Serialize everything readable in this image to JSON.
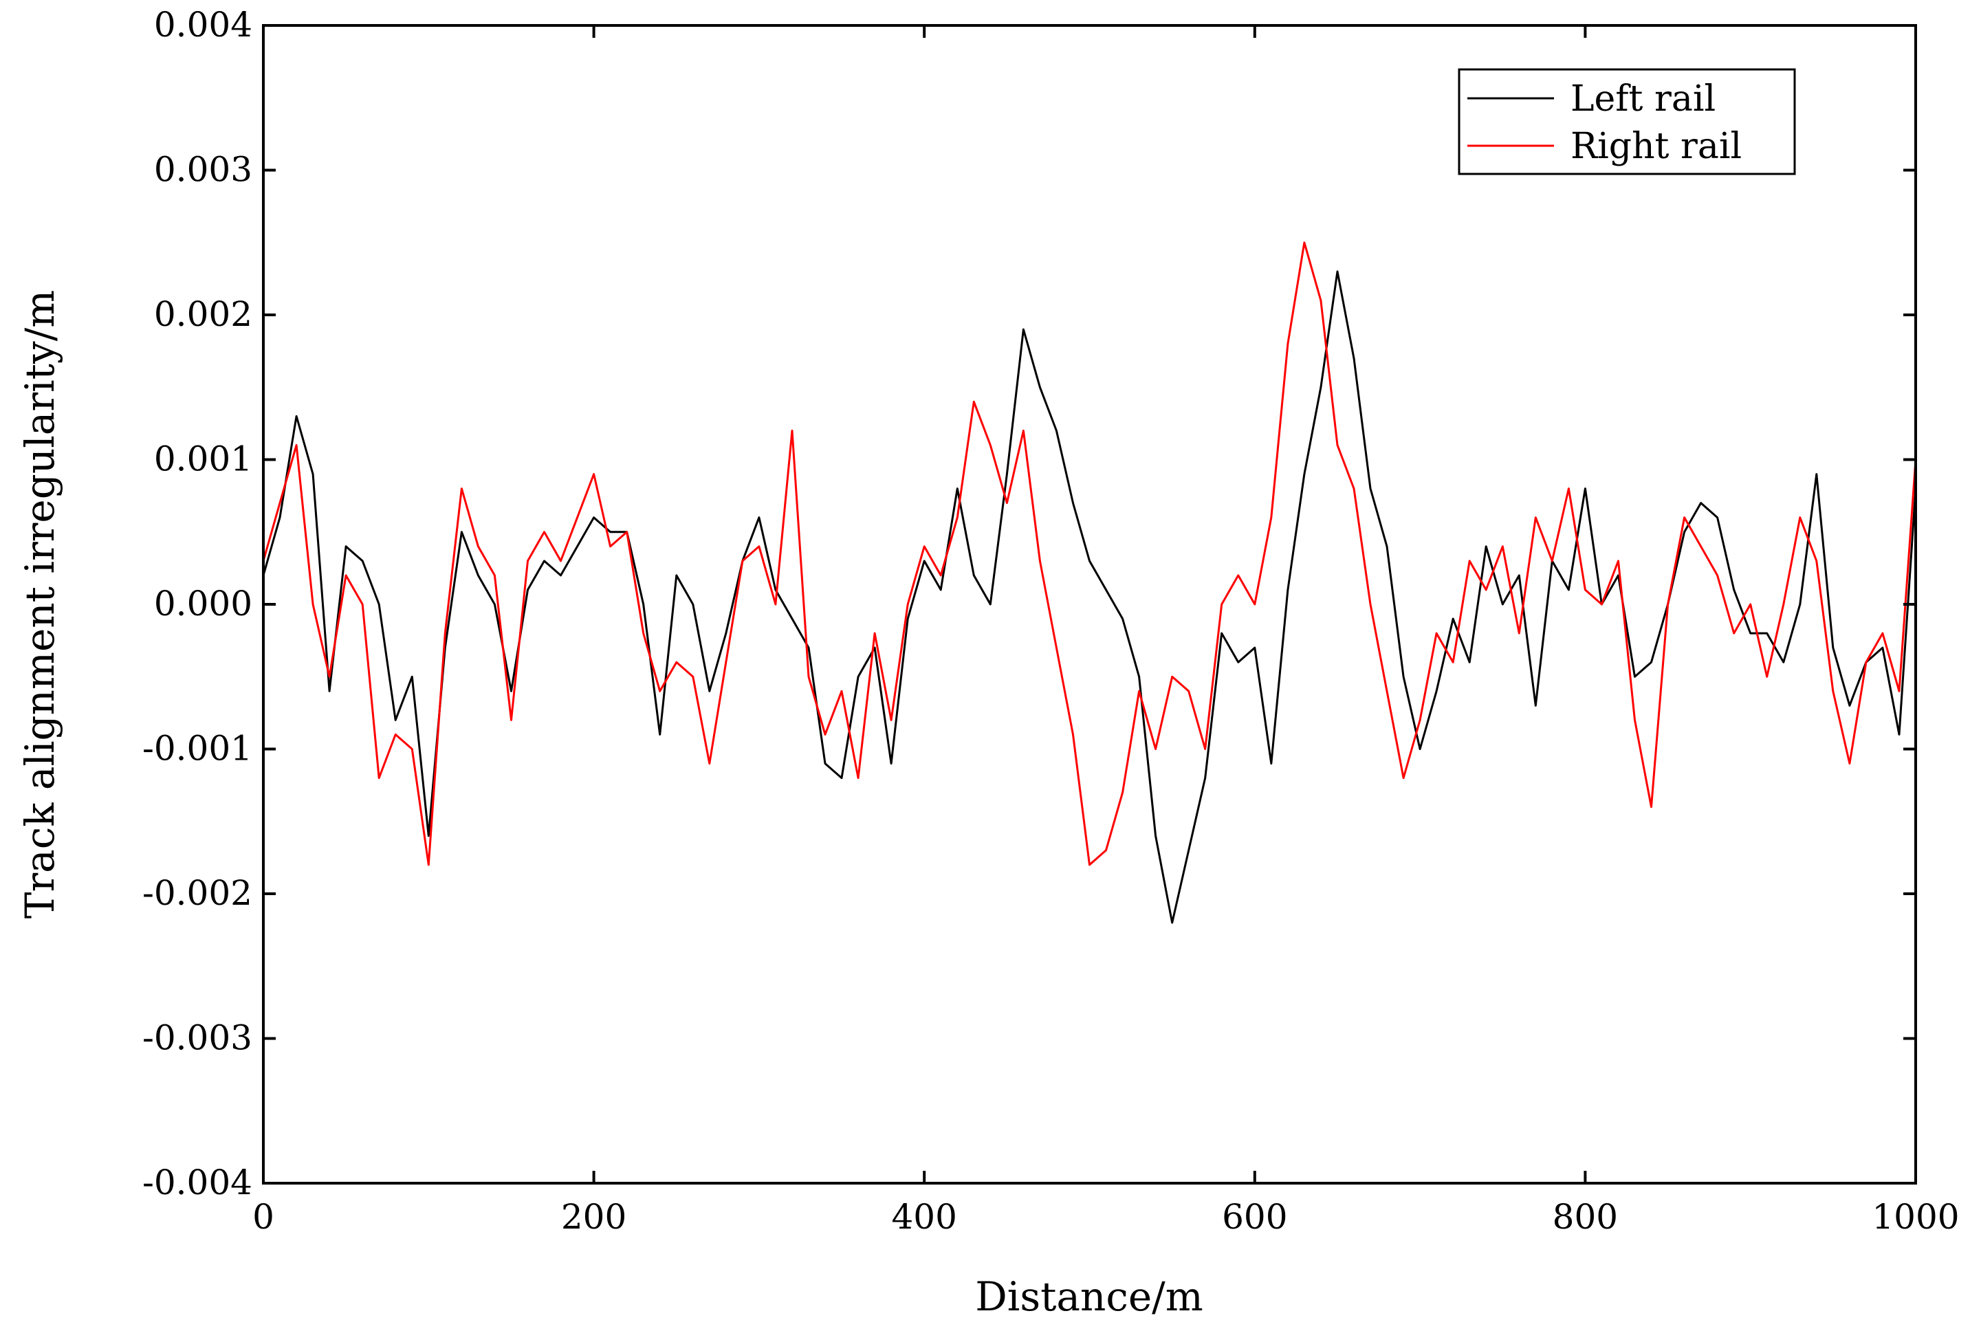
{
  "chart_data": {
    "type": "line",
    "title": "",
    "xlabel": "Distance/m",
    "ylabel": "Track alignment irregularity/m",
    "xlim": [
      0,
      1000
    ],
    "ylim": [
      -0.004,
      0.004
    ],
    "xticks": [
      0,
      200,
      400,
      600,
      800,
      1000
    ],
    "xtick_labels": [
      "0",
      "200",
      "400",
      "600",
      "800",
      "1000"
    ],
    "yticks": [
      -0.004,
      -0.003,
      -0.002,
      -0.001,
      0.0,
      0.001,
      0.002,
      0.003,
      0.004
    ],
    "ytick_labels": [
      "-0.004",
      "-0.003",
      "-0.002",
      "-0.001",
      "0.000",
      "0.001",
      "0.002",
      "0.003",
      "0.004"
    ],
    "grid": false,
    "legend_position": "top-right",
    "x": [
      0,
      10,
      20,
      30,
      40,
      50,
      60,
      70,
      80,
      90,
      100,
      110,
      120,
      130,
      140,
      150,
      160,
      170,
      180,
      190,
      200,
      210,
      220,
      230,
      240,
      250,
      260,
      270,
      280,
      290,
      300,
      310,
      320,
      330,
      340,
      350,
      360,
      370,
      380,
      390,
      400,
      410,
      420,
      430,
      440,
      450,
      460,
      470,
      480,
      490,
      500,
      510,
      520,
      530,
      540,
      550,
      560,
      570,
      580,
      590,
      600,
      610,
      620,
      630,
      640,
      650,
      660,
      670,
      680,
      690,
      700,
      710,
      720,
      730,
      740,
      750,
      760,
      770,
      780,
      790,
      800,
      810,
      820,
      830,
      840,
      850,
      860,
      870,
      880,
      890,
      900,
      910,
      920,
      930,
      940,
      950,
      960,
      970,
      980,
      990,
      1000
    ],
    "series": [
      {
        "name": "Left rail",
        "color": "#000000",
        "values": [
          0.0002,
          0.0006,
          0.0013,
          0.0009,
          -0.0006,
          0.0004,
          0.0003,
          0.0,
          -0.0008,
          -0.0005,
          -0.0016,
          -0.0003,
          0.0005,
          0.0002,
          0.0,
          -0.0006,
          0.0001,
          0.0003,
          0.0002,
          0.0004,
          0.0006,
          0.0005,
          0.0005,
          0.0,
          -0.0009,
          0.0002,
          0.0,
          -0.0006,
          -0.0002,
          0.0003,
          0.0006,
          0.0001,
          -0.0001,
          -0.0003,
          -0.0011,
          -0.0012,
          -0.0005,
          -0.0003,
          -0.0011,
          -0.0001,
          0.0003,
          0.0001,
          0.0008,
          0.0002,
          0.0,
          0.0009,
          0.0019,
          0.0015,
          0.0012,
          0.0007,
          0.0003,
          0.0001,
          -0.0001,
          -0.0005,
          -0.0016,
          -0.0022,
          -0.0017,
          -0.0012,
          -0.0002,
          -0.0004,
          -0.0003,
          -0.0011,
          0.0001,
          0.0009,
          0.0015,
          0.0023,
          0.0017,
          0.0008,
          0.0004,
          -0.0005,
          -0.001,
          -0.0006,
          -0.0001,
          -0.0004,
          0.0004,
          0.0,
          0.0002,
          -0.0007,
          0.0003,
          0.0001,
          0.0008,
          0.0,
          0.0002,
          -0.0005,
          -0.0004,
          0.0,
          0.0005,
          0.0007,
          0.0006,
          0.0001,
          -0.0002,
          -0.0002,
          -0.0004,
          0.0,
          0.0009,
          -0.0003,
          -0.0007,
          -0.0004,
          -0.0003,
          -0.0009,
          0.0008
        ]
      },
      {
        "name": "Right rail",
        "color": "#ff0000",
        "values": [
          0.0003,
          0.0007,
          0.0011,
          0.0,
          -0.0005,
          0.0002,
          0.0,
          -0.0012,
          -0.0009,
          -0.001,
          -0.0018,
          -0.0002,
          0.0008,
          0.0004,
          0.0002,
          -0.0008,
          0.0003,
          0.0005,
          0.0003,
          0.0006,
          0.0009,
          0.0004,
          0.0005,
          -0.0002,
          -0.0006,
          -0.0004,
          -0.0005,
          -0.0011,
          -0.0004,
          0.0003,
          0.0004,
          0.0,
          0.0012,
          -0.0005,
          -0.0009,
          -0.0006,
          -0.0012,
          -0.0002,
          -0.0008,
          0.0,
          0.0004,
          0.0002,
          0.0006,
          0.0014,
          0.0011,
          0.0007,
          0.0012,
          0.0003,
          -0.0003,
          -0.0009,
          -0.0018,
          -0.0017,
          -0.0013,
          -0.0006,
          -0.001,
          -0.0005,
          -0.0006,
          -0.001,
          0.0,
          0.0002,
          0.0,
          0.0006,
          0.0018,
          0.0025,
          0.0021,
          0.0011,
          0.0008,
          0.0,
          -0.0006,
          -0.0012,
          -0.0008,
          -0.0002,
          -0.0004,
          0.0003,
          0.0001,
          0.0004,
          -0.0002,
          0.0006,
          0.0003,
          0.0008,
          0.0001,
          0.0,
          0.0003,
          -0.0008,
          -0.0014,
          0.0,
          0.0006,
          0.0004,
          0.0002,
          -0.0002,
          0.0,
          -0.0005,
          0.0,
          0.0006,
          0.0003,
          -0.0006,
          -0.0011,
          -0.0004,
          -0.0002,
          -0.0006,
          0.001
        ]
      }
    ]
  }
}
